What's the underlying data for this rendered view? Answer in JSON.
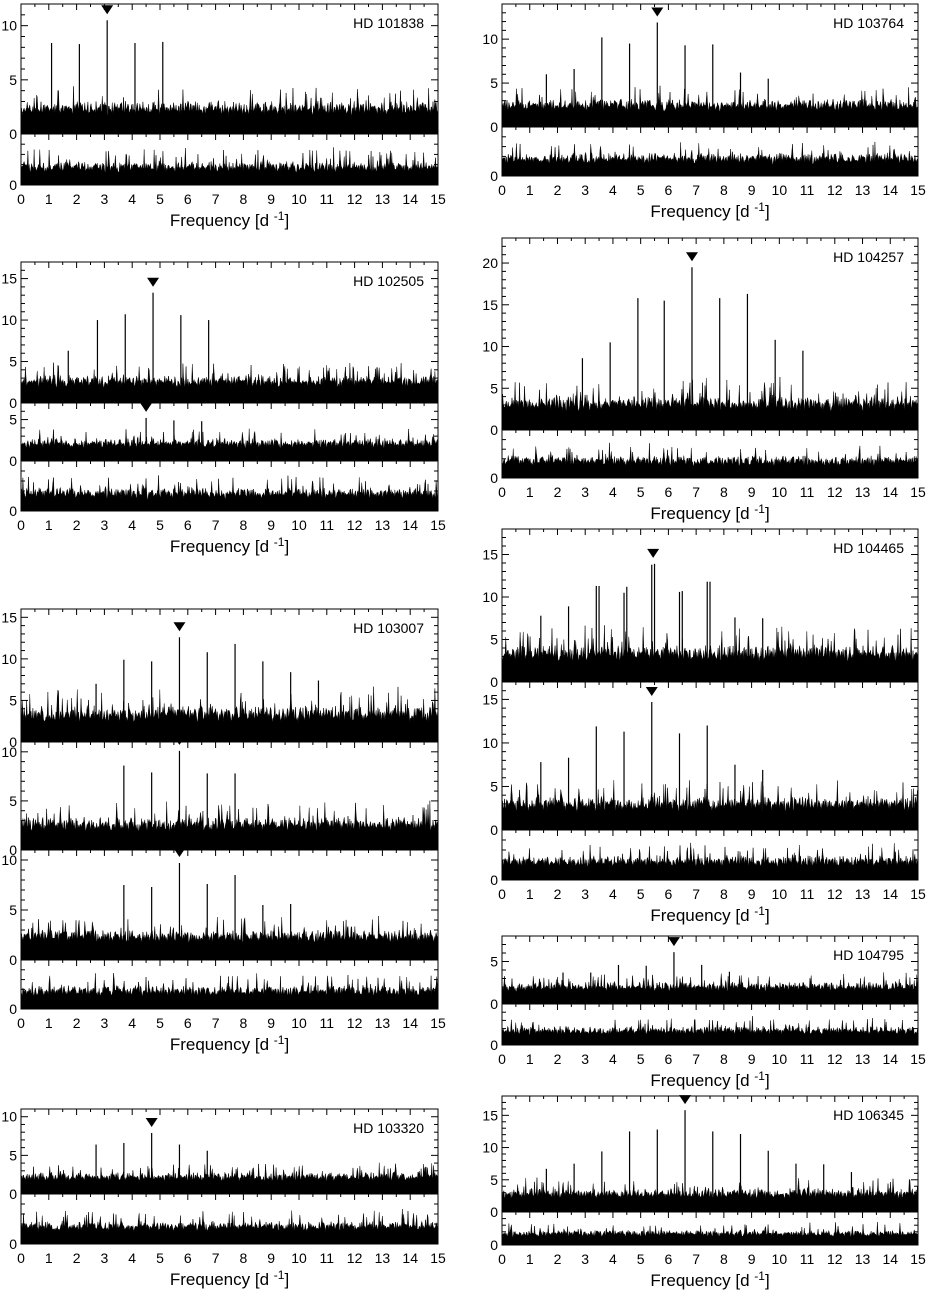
{
  "figure": {
    "xlabel": "Frequency [d",
    "xlabel_sup": "-1",
    "xlabel_close": "]",
    "marker_symbol": "▼"
  },
  "chart_data": [
    {
      "type": "line",
      "star": "HD 101838",
      "xlim": [
        0,
        15
      ],
      "xticks": [
        0,
        1,
        2,
        3,
        4,
        5,
        6,
        7,
        8,
        9,
        10,
        11,
        12,
        13,
        14,
        15
      ],
      "panels": [
        {
          "ylim": [
            0,
            12
          ],
          "yticks": [
            0,
            5,
            10
          ],
          "noise_level": 2.2,
          "noise_amp": 1.6,
          "peaks": [
            {
              "x": 1.1,
              "y": 8.4
            },
            {
              "x": 2.1,
              "y": 8.3
            },
            {
              "x": 3.1,
              "y": 10.5
            },
            {
              "x": 4.1,
              "y": 8.4
            },
            {
              "x": 5.1,
              "y": 8.5
            }
          ],
          "marker_x": 3.1
        },
        {
          "ylim": [
            0,
            5
          ],
          "yticks": [
            0
          ],
          "noise_level": 1.6,
          "noise_amp": 1.4,
          "peaks": [],
          "marker_x": null
        }
      ]
    },
    {
      "type": "line",
      "star": "HD 102505",
      "xlim": [
        0,
        15
      ],
      "xticks": [
        0,
        1,
        2,
        3,
        4,
        5,
        6,
        7,
        8,
        9,
        10,
        11,
        12,
        13,
        14,
        15
      ],
      "panels": [
        {
          "ylim": [
            0,
            17
          ],
          "yticks": [
            0,
            5,
            10,
            15
          ],
          "noise_level": 2.4,
          "noise_amp": 1.8,
          "peaks": [
            {
              "x": 1.7,
              "y": 6.3
            },
            {
              "x": 2.75,
              "y": 10.0
            },
            {
              "x": 3.75,
              "y": 10.7
            },
            {
              "x": 4.75,
              "y": 13.3
            },
            {
              "x": 5.75,
              "y": 10.6
            },
            {
              "x": 6.75,
              "y": 10.0
            }
          ],
          "marker_x": 4.75
        },
        {
          "ylim": [
            0,
            7
          ],
          "yticks": [
            0,
            5
          ],
          "noise_level": 2.0,
          "noise_amp": 1.4,
          "peaks": [
            {
              "x": 4.5,
              "y": 5.2
            },
            {
              "x": 5.5,
              "y": 4.9
            },
            {
              "x": 6.5,
              "y": 4.8
            }
          ],
          "marker_x": 4.5
        },
        {
          "ylim": [
            0,
            5
          ],
          "yticks": [
            0
          ],
          "noise_level": 1.6,
          "noise_amp": 1.4,
          "peaks": [],
          "marker_x": null
        }
      ]
    },
    {
      "type": "line",
      "star": "HD 103007",
      "xlim": [
        0,
        15
      ],
      "xticks": [
        0,
        1,
        2,
        3,
        4,
        5,
        6,
        7,
        8,
        9,
        10,
        11,
        12,
        13,
        14,
        15
      ],
      "panels": [
        {
          "ylim": [
            0,
            16
          ],
          "yticks": [
            0,
            5,
            10,
            15
          ],
          "noise_level": 3.0,
          "noise_amp": 2.6,
          "peaks": [
            {
              "x": 2.7,
              "y": 7.0
            },
            {
              "x": 3.7,
              "y": 9.9
            },
            {
              "x": 4.7,
              "y": 9.7
            },
            {
              "x": 5.7,
              "y": 12.6
            },
            {
              "x": 6.7,
              "y": 10.8
            },
            {
              "x": 7.7,
              "y": 11.8
            },
            {
              "x": 8.7,
              "y": 9.7
            },
            {
              "x": 9.7,
              "y": 8.4
            },
            {
              "x": 10.7,
              "y": 7.4
            }
          ],
          "marker_x": 5.7
        },
        {
          "ylim": [
            0,
            11
          ],
          "yticks": [
            0,
            5,
            10
          ],
          "noise_level": 2.4,
          "noise_amp": 1.8,
          "peaks": [
            {
              "x": 3.7,
              "y": 8.6
            },
            {
              "x": 4.7,
              "y": 7.9
            },
            {
              "x": 5.7,
              "y": 10.1
            },
            {
              "x": 6.7,
              "y": 7.8
            },
            {
              "x": 7.7,
              "y": 7.8
            }
          ],
          "marker_x": 5.7
        },
        {
          "ylim": [
            0,
            11
          ],
          "yticks": [
            0,
            5,
            10
          ],
          "noise_level": 2.2,
          "noise_amp": 1.6,
          "peaks": [
            {
              "x": 3.7,
              "y": 7.5
            },
            {
              "x": 4.7,
              "y": 7.3
            },
            {
              "x": 5.7,
              "y": 9.7
            },
            {
              "x": 6.7,
              "y": 7.6
            },
            {
              "x": 7.7,
              "y": 8.5
            },
            {
              "x": 8.7,
              "y": 5.5
            },
            {
              "x": 9.7,
              "y": 5.6
            }
          ],
          "marker_x": 5.7
        },
        {
          "ylim": [
            0,
            5
          ],
          "yticks": [
            0
          ],
          "noise_level": 1.7,
          "noise_amp": 1.4,
          "peaks": [],
          "marker_x": null
        }
      ]
    },
    {
      "type": "line",
      "star": "HD 103320",
      "xlim": [
        0,
        15
      ],
      "xticks": [
        0,
        1,
        2,
        3,
        4,
        5,
        6,
        7,
        8,
        9,
        10,
        11,
        12,
        13,
        14,
        15
      ],
      "panels": [
        {
          "ylim": [
            0,
            11
          ],
          "yticks": [
            0,
            5,
            10
          ],
          "noise_level": 2.1,
          "noise_amp": 1.4,
          "peaks": [
            {
              "x": 2.7,
              "y": 6.4
            },
            {
              "x": 3.7,
              "y": 6.6
            },
            {
              "x": 4.7,
              "y": 7.9
            },
            {
              "x": 5.7,
              "y": 6.4
            },
            {
              "x": 6.7,
              "y": 5.6
            }
          ],
          "marker_x": 4.7
        },
        {
          "ylim": [
            0,
            5
          ],
          "yticks": [
            0
          ],
          "noise_level": 1.6,
          "noise_amp": 1.3,
          "peaks": [],
          "marker_x": null
        }
      ]
    },
    {
      "type": "line",
      "star": "HD 103764",
      "xlim": [
        0,
        15
      ],
      "xticks": [
        0,
        1,
        2,
        3,
        4,
        5,
        6,
        7,
        8,
        9,
        10,
        11,
        12,
        13,
        14,
        15
      ],
      "panels": [
        {
          "ylim": [
            0,
            14
          ],
          "yticks": [
            0,
            5,
            10
          ],
          "noise_level": 2.3,
          "noise_amp": 1.7,
          "peaks": [
            {
              "x": 1.6,
              "y": 6.0
            },
            {
              "x": 2.6,
              "y": 6.6
            },
            {
              "x": 3.6,
              "y": 10.2
            },
            {
              "x": 4.6,
              "y": 9.5
            },
            {
              "x": 5.6,
              "y": 11.9
            },
            {
              "x": 6.6,
              "y": 9.3
            },
            {
              "x": 7.6,
              "y": 9.4
            },
            {
              "x": 8.6,
              "y": 6.2
            },
            {
              "x": 9.6,
              "y": 5.5
            }
          ],
          "marker_x": 5.6
        },
        {
          "ylim": [
            0,
            5
          ],
          "yticks": [
            0
          ],
          "noise_level": 1.6,
          "noise_amp": 1.4,
          "peaks": [],
          "marker_x": null
        }
      ]
    },
    {
      "type": "line",
      "star": "HD 104257",
      "xlim": [
        0,
        15
      ],
      "xticks": [
        0,
        1,
        2,
        3,
        4,
        5,
        6,
        7,
        8,
        9,
        10,
        11,
        12,
        13,
        14,
        15
      ],
      "panels": [
        {
          "ylim": [
            0,
            23
          ],
          "yticks": [
            0,
            5,
            10,
            15,
            20
          ],
          "noise_level": 2.8,
          "noise_amp": 2.4,
          "peaks": [
            {
              "x": 2.9,
              "y": 8.6
            },
            {
              "x": 3.9,
              "y": 10.5
            },
            {
              "x": 4.9,
              "y": 15.8
            },
            {
              "x": 5.85,
              "y": 15.5
            },
            {
              "x": 6.85,
              "y": 19.5
            },
            {
              "x": 7.85,
              "y": 15.8
            },
            {
              "x": 8.85,
              "y": 16.3
            },
            {
              "x": 9.85,
              "y": 10.8
            },
            {
              "x": 10.85,
              "y": 9.5
            }
          ],
          "marker_x": 6.85
        },
        {
          "ylim": [
            0,
            5
          ],
          "yticks": [
            0
          ],
          "noise_level": 1.6,
          "noise_amp": 1.4,
          "peaks": [],
          "marker_x": null
        }
      ]
    },
    {
      "type": "line",
      "star": "HD 104465",
      "xlim": [
        0,
        15
      ],
      "xticks": [
        0,
        1,
        2,
        3,
        4,
        5,
        6,
        7,
        8,
        9,
        10,
        11,
        12,
        13,
        14,
        15
      ],
      "panels": [
        {
          "ylim": [
            0,
            18
          ],
          "yticks": [
            0,
            5,
            10,
            15
          ],
          "noise_level": 3.0,
          "noise_amp": 2.6,
          "peaks": [
            {
              "x": 1.4,
              "y": 7.8
            },
            {
              "x": 2.4,
              "y": 8.9
            },
            {
              "x": 3.4,
              "y": 11.3
            },
            {
              "x": 3.5,
              "y": 11.3
            },
            {
              "x": 4.4,
              "y": 10.5
            },
            {
              "x": 4.5,
              "y": 11.2
            },
            {
              "x": 5.4,
              "y": 13.8
            },
            {
              "x": 5.5,
              "y": 13.9
            },
            {
              "x": 6.4,
              "y": 10.6
            },
            {
              "x": 6.5,
              "y": 10.7
            },
            {
              "x": 7.4,
              "y": 11.8
            },
            {
              "x": 7.5,
              "y": 11.8
            },
            {
              "x": 8.4,
              "y": 7.6
            },
            {
              "x": 9.4,
              "y": 7.5
            }
          ],
          "marker_x": 5.45
        },
        {
          "ylim": [
            0,
            17
          ],
          "yticks": [
            0,
            5,
            10,
            15
          ],
          "noise_level": 2.7,
          "noise_amp": 2.2,
          "peaks": [
            {
              "x": 1.4,
              "y": 7.8
            },
            {
              "x": 2.4,
              "y": 8.3
            },
            {
              "x": 3.4,
              "y": 11.9
            },
            {
              "x": 4.4,
              "y": 11.3
            },
            {
              "x": 5.4,
              "y": 14.7
            },
            {
              "x": 6.4,
              "y": 11.1
            },
            {
              "x": 7.4,
              "y": 12.0
            },
            {
              "x": 8.4,
              "y": 7.5
            },
            {
              "x": 9.4,
              "y": 6.9
            }
          ],
          "marker_x": 5.4
        },
        {
          "ylim": [
            0,
            5
          ],
          "yticks": [
            0
          ],
          "noise_level": 1.7,
          "noise_amp": 1.4,
          "peaks": [],
          "marker_x": null
        }
      ]
    },
    {
      "type": "line",
      "star": "HD 104795",
      "xlim": [
        0,
        15
      ],
      "xticks": [
        0,
        1,
        2,
        3,
        4,
        5,
        6,
        7,
        8,
        9,
        10,
        11,
        12,
        13,
        14,
        15
      ],
      "panels": [
        {
          "ylim": [
            0,
            8
          ],
          "yticks": [
            0,
            5
          ],
          "noise_level": 1.9,
          "noise_amp": 1.3,
          "peaks": [
            {
              "x": 2.2,
              "y": 3.7
            },
            {
              "x": 3.2,
              "y": 3.7
            },
            {
              "x": 4.2,
              "y": 4.6
            },
            {
              "x": 5.2,
              "y": 4.5
            },
            {
              "x": 6.2,
              "y": 6.1
            },
            {
              "x": 7.2,
              "y": 4.6
            },
            {
              "x": 8.2,
              "y": 3.8
            }
          ],
          "marker_x": 6.2
        },
        {
          "ylim": [
            0,
            5
          ],
          "yticks": [
            0
          ],
          "noise_level": 1.6,
          "noise_amp": 1.3,
          "peaks": [],
          "marker_x": null
        }
      ]
    },
    {
      "type": "line",
      "star": "HD 106345",
      "xlim": [
        0,
        15
      ],
      "xticks": [
        0,
        1,
        2,
        3,
        4,
        5,
        6,
        7,
        8,
        9,
        10,
        11,
        12,
        13,
        14,
        15
      ],
      "panels": [
        {
          "ylim": [
            0,
            18
          ],
          "yticks": [
            0,
            5,
            10,
            15
          ],
          "noise_level": 2.6,
          "noise_amp": 2.0,
          "peaks": [
            {
              "x": 1.6,
              "y": 6.7
            },
            {
              "x": 2.6,
              "y": 7.5
            },
            {
              "x": 3.6,
              "y": 9.4
            },
            {
              "x": 4.6,
              "y": 12.5
            },
            {
              "x": 5.6,
              "y": 12.8
            },
            {
              "x": 6.6,
              "y": 15.8
            },
            {
              "x": 7.6,
              "y": 12.5
            },
            {
              "x": 8.6,
              "y": 12.1
            },
            {
              "x": 9.6,
              "y": 9.5
            },
            {
              "x": 10.6,
              "y": 7.5
            },
            {
              "x": 11.6,
              "y": 7.4
            },
            {
              "x": 12.6,
              "y": 6.2
            }
          ],
          "marker_x": 6.6
        },
        {
          "ylim": [
            0,
            5
          ],
          "yticks": [
            0
          ],
          "noise_level": 1.6,
          "noise_amp": 1.3,
          "peaks": [],
          "marker_x": null
        }
      ]
    }
  ]
}
